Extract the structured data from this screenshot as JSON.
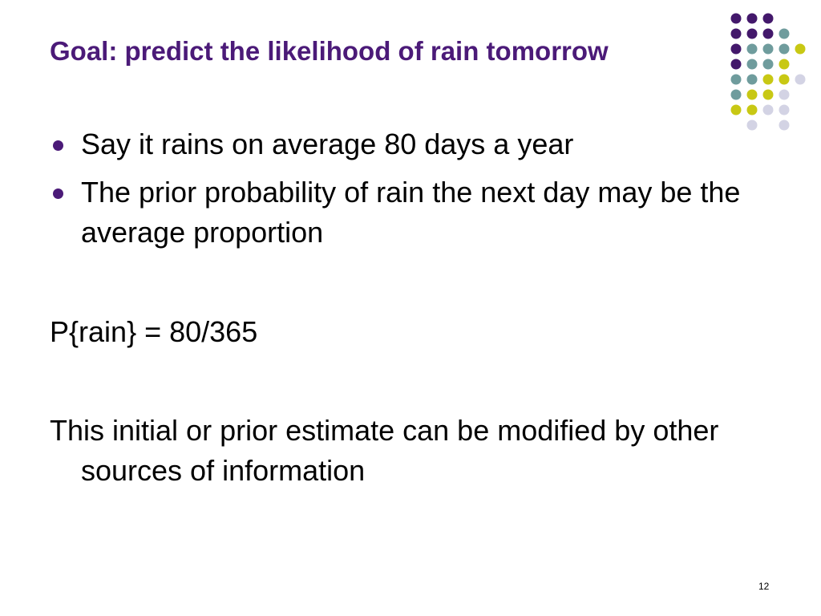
{
  "slide": {
    "title": "Goal: predict the likelihood of rain tomorrow",
    "bullets": [
      "Say it rains on average 80 days a year",
      "The prior probability of rain the next day may be the average proportion"
    ],
    "paragraphs": [
      "P{rain} = 80/365",
      "This initial or prior estimate can be modified by other sources of information"
    ],
    "page_number": "12"
  }
}
